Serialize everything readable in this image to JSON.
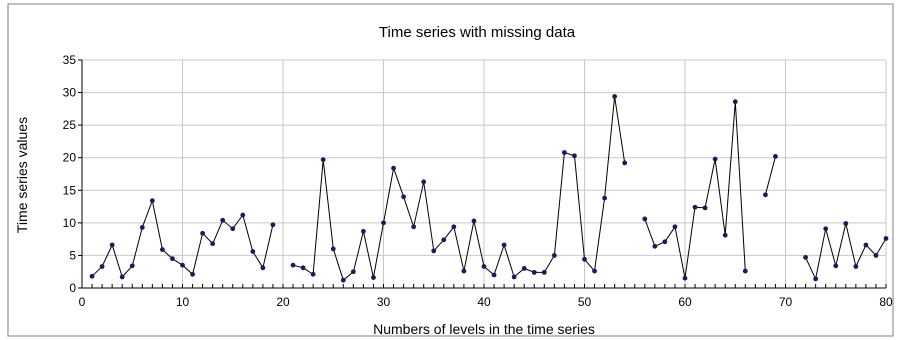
{
  "chart_data": {
    "type": "line",
    "title": "Time series  with  missing data",
    "xlabel": "Numbers of levels in the time series",
    "ylabel": "Time  series  values",
    "xlim": [
      0,
      80
    ],
    "ylim": [
      0,
      35
    ],
    "xticks": [
      0,
      10,
      20,
      30,
      40,
      50,
      60,
      70,
      80
    ],
    "yticks": [
      0,
      5,
      10,
      15,
      20,
      25,
      30,
      35
    ],
    "grid": true,
    "legend": "none",
    "colors": {
      "line": "#000000",
      "marker": "#1b1b5a",
      "grid": "#c8c8c8"
    },
    "series": [
      {
        "x": [
          1,
          2,
          3,
          4,
          5,
          6,
          7,
          8,
          9,
          10,
          11,
          12,
          13,
          14,
          15,
          16,
          17,
          18,
          19,
          20,
          21,
          22,
          23,
          24,
          25,
          26,
          27,
          28,
          29,
          30,
          31,
          32,
          33,
          34,
          35,
          36,
          37,
          38,
          39,
          40,
          41,
          42,
          43,
          44,
          45,
          46,
          47,
          48,
          49,
          50,
          51,
          52,
          53,
          54,
          55,
          56,
          57,
          58,
          59,
          60,
          61,
          62,
          63,
          64,
          65,
          66,
          67,
          68,
          69,
          70,
          71,
          72,
          73,
          74,
          75,
          76,
          77,
          78,
          79,
          80
        ],
        "y": [
          1.8,
          3.3,
          6.6,
          1.7,
          3.4,
          9.3,
          13.4,
          5.9,
          4.5,
          3.5,
          2.1,
          8.4,
          6.8,
          10.4,
          9.1,
          11.2,
          5.6,
          3.1,
          9.7,
          null,
          3.5,
          3.1,
          2.1,
          19.7,
          6.0,
          1.2,
          2.5,
          8.7,
          1.6,
          10.0,
          18.4,
          14.0,
          9.4,
          16.3,
          5.7,
          7.4,
          9.4,
          2.6,
          10.3,
          3.3,
          2.0,
          6.6,
          1.7,
          3.0,
          2.4,
          2.4,
          5.0,
          20.8,
          20.3,
          4.4,
          2.6,
          13.8,
          29.4,
          19.2,
          null,
          10.6,
          6.4,
          7.1,
          9.4,
          1.5,
          12.4,
          12.3,
          19.8,
          8.1,
          28.6,
          2.6,
          null,
          14.3,
          20.2,
          null,
          null,
          4.7,
          1.4,
          9.1,
          3.4,
          9.9,
          3.3,
          6.6,
          5.0,
          7.6
        ]
      }
    ]
  }
}
